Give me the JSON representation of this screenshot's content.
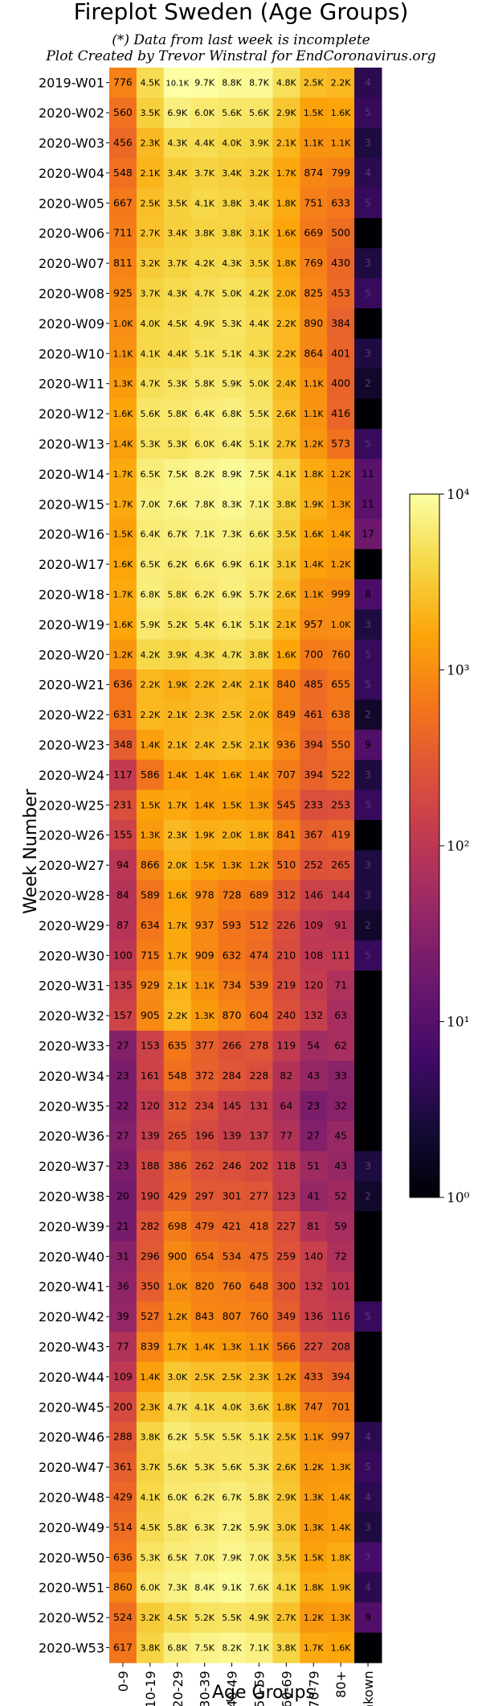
{
  "chart_data": {
    "type": "heatmap",
    "title": "Fireplot Sweden (Age Groups)",
    "subtitle_1": "(*) Data from last week is incomplete",
    "subtitle_2": "Plot Created by Trevor Winstral for EndCoronavirus.org",
    "xlabel": "Age Groups",
    "ylabel": "Week Number",
    "columns": [
      "0-9",
      "10-19",
      "20-29",
      "30-39",
      "40-49",
      "50-59",
      "60-69",
      "70-79",
      "80+",
      "Unkown"
    ],
    "rows": [
      "2019-W01",
      "2020-W02",
      "2020-W03",
      "2020-W04",
      "2020-W05",
      "2020-W06",
      "2020-W07",
      "2020-W08",
      "2020-W09",
      "2020-W10",
      "2020-W11",
      "2020-W12",
      "2020-W13",
      "2020-W14",
      "2020-W15",
      "2020-W16",
      "2020-W17",
      "2020-W18",
      "2020-W19",
      "2020-W20",
      "2020-W21",
      "2020-W22",
      "2020-W23",
      "2020-W24",
      "2020-W25",
      "2020-W26",
      "2020-W27",
      "2020-W28",
      "2020-W29",
      "2020-W30",
      "2020-W31",
      "2020-W32",
      "2020-W33",
      "2020-W34",
      "2020-W35",
      "2020-W36",
      "2020-W37",
      "2020-W38",
      "2020-W39",
      "2020-W40",
      "2020-W41",
      "2020-W42",
      "2020-W43",
      "2020-W44",
      "2020-W45",
      "2020-W46",
      "2020-W47",
      "2020-W48",
      "2020-W49",
      "2020-W50",
      "2020-W51",
      "2020-W52",
      "2020-W53"
    ],
    "labels": [
      [
        "776",
        "4.5K",
        "10.1K",
        "9.7K",
        "8.8K",
        "8.7K",
        "4.8K",
        "2.5K",
        "2.2K",
        "4"
      ],
      [
        "560",
        "3.5K",
        "6.9K",
        "6.0K",
        "5.6K",
        "5.6K",
        "2.9K",
        "1.5K",
        "1.6K",
        "5"
      ],
      [
        "456",
        "2.3K",
        "4.3K",
        "4.4K",
        "4.0K",
        "3.9K",
        "2.1K",
        "1.1K",
        "1.1K",
        "3"
      ],
      [
        "548",
        "2.1K",
        "3.4K",
        "3.7K",
        "3.4K",
        "3.2K",
        "1.7K",
        "874",
        "799",
        "4"
      ],
      [
        "667",
        "2.5K",
        "3.5K",
        "4.1K",
        "3.8K",
        "3.4K",
        "1.8K",
        "751",
        "633",
        "5"
      ],
      [
        "711",
        "2.7K",
        "3.4K",
        "3.8K",
        "3.8K",
        "3.1K",
        "1.6K",
        "669",
        "500",
        ""
      ],
      [
        "811",
        "3.2K",
        "3.7K",
        "4.2K",
        "4.3K",
        "3.5K",
        "1.8K",
        "769",
        "430",
        "3"
      ],
      [
        "925",
        "3.7K",
        "4.3K",
        "4.7K",
        "5.0K",
        "4.2K",
        "2.0K",
        "825",
        "453",
        "5"
      ],
      [
        "1.0K",
        "4.0K",
        "4.5K",
        "4.9K",
        "5.3K",
        "4.4K",
        "2.2K",
        "890",
        "384",
        ""
      ],
      [
        "1.1K",
        "4.1K",
        "4.4K",
        "5.1K",
        "5.1K",
        "4.3K",
        "2.2K",
        "864",
        "401",
        "3"
      ],
      [
        "1.3K",
        "4.7K",
        "5.3K",
        "5.8K",
        "5.9K",
        "5.0K",
        "2.4K",
        "1.1K",
        "400",
        "2"
      ],
      [
        "1.6K",
        "5.6K",
        "5.8K",
        "6.4K",
        "6.8K",
        "5.5K",
        "2.6K",
        "1.1K",
        "416",
        ""
      ],
      [
        "1.4K",
        "5.3K",
        "5.3K",
        "6.0K",
        "6.4K",
        "5.1K",
        "2.7K",
        "1.2K",
        "573",
        "5"
      ],
      [
        "1.7K",
        "6.5K",
        "7.5K",
        "8.2K",
        "8.9K",
        "7.5K",
        "4.1K",
        "1.8K",
        "1.2K",
        "11"
      ],
      [
        "1.7K",
        "7.0K",
        "7.6K",
        "7.8K",
        "8.3K",
        "7.1K",
        "3.8K",
        "1.9K",
        "1.3K",
        "11"
      ],
      [
        "1.5K",
        "6.4K",
        "6.7K",
        "7.1K",
        "7.3K",
        "6.6K",
        "3.5K",
        "1.6K",
        "1.4K",
        "17"
      ],
      [
        "1.6K",
        "6.5K",
        "6.2K",
        "6.6K",
        "6.9K",
        "6.1K",
        "3.1K",
        "1.4K",
        "1.2K",
        ""
      ],
      [
        "1.7K",
        "6.8K",
        "5.8K",
        "6.2K",
        "6.9K",
        "5.7K",
        "2.6K",
        "1.1K",
        "999",
        "8"
      ],
      [
        "1.6K",
        "5.9K",
        "5.2K",
        "5.4K",
        "6.1K",
        "5.1K",
        "2.1K",
        "957",
        "1.0K",
        "3"
      ],
      [
        "1.2K",
        "4.2K",
        "3.9K",
        "4.3K",
        "4.7K",
        "3.8K",
        "1.6K",
        "700",
        "760",
        "5"
      ],
      [
        "636",
        "2.2K",
        "1.9K",
        "2.2K",
        "2.4K",
        "2.1K",
        "840",
        "485",
        "655",
        "5"
      ],
      [
        "631",
        "2.2K",
        "2.1K",
        "2.3K",
        "2.5K",
        "2.0K",
        "849",
        "461",
        "638",
        "2"
      ],
      [
        "348",
        "1.4K",
        "2.1K",
        "2.4K",
        "2.5K",
        "2.1K",
        "936",
        "394",
        "550",
        "9"
      ],
      [
        "117",
        "586",
        "1.4K",
        "1.4K",
        "1.6K",
        "1.4K",
        "707",
        "394",
        "522",
        "3"
      ],
      [
        "231",
        "1.5K",
        "1.7K",
        "1.4K",
        "1.5K",
        "1.3K",
        "545",
        "233",
        "253",
        "5"
      ],
      [
        "155",
        "1.3K",
        "2.3K",
        "1.9K",
        "2.0K",
        "1.8K",
        "841",
        "367",
        "419",
        ""
      ],
      [
        "94",
        "866",
        "2.0K",
        "1.5K",
        "1.3K",
        "1.2K",
        "510",
        "252",
        "265",
        "3"
      ],
      [
        "84",
        "589",
        "1.6K",
        "978",
        "728",
        "689",
        "312",
        "146",
        "144",
        "3"
      ],
      [
        "87",
        "634",
        "1.7K",
        "937",
        "593",
        "512",
        "226",
        "109",
        "91",
        "2"
      ],
      [
        "100",
        "715",
        "1.7K",
        "909",
        "632",
        "474",
        "210",
        "108",
        "111",
        "5"
      ],
      [
        "135",
        "929",
        "2.1K",
        "1.1K",
        "734",
        "539",
        "219",
        "120",
        "71",
        ""
      ],
      [
        "157",
        "905",
        "2.2K",
        "1.3K",
        "870",
        "604",
        "240",
        "132",
        "63",
        ""
      ],
      [
        "27",
        "153",
        "635",
        "377",
        "266",
        "278",
        "119",
        "54",
        "62",
        ""
      ],
      [
        "23",
        "161",
        "548",
        "372",
        "284",
        "228",
        "82",
        "43",
        "33",
        ""
      ],
      [
        "22",
        "120",
        "312",
        "234",
        "145",
        "131",
        "64",
        "23",
        "32",
        ""
      ],
      [
        "27",
        "139",
        "265",
        "196",
        "139",
        "137",
        "77",
        "27",
        "45",
        ""
      ],
      [
        "23",
        "188",
        "386",
        "262",
        "246",
        "202",
        "118",
        "51",
        "43",
        "3"
      ],
      [
        "20",
        "190",
        "429",
        "297",
        "301",
        "277",
        "123",
        "41",
        "52",
        "2"
      ],
      [
        "21",
        "282",
        "698",
        "479",
        "421",
        "418",
        "227",
        "81",
        "59",
        ""
      ],
      [
        "31",
        "296",
        "900",
        "654",
        "534",
        "475",
        "259",
        "140",
        "72",
        ""
      ],
      [
        "36",
        "350",
        "1.0K",
        "820",
        "760",
        "648",
        "300",
        "132",
        "101",
        ""
      ],
      [
        "39",
        "527",
        "1.2K",
        "843",
        "807",
        "760",
        "349",
        "136",
        "116",
        "5"
      ],
      [
        "77",
        "839",
        "1.7K",
        "1.4K",
        "1.3K",
        "1.1K",
        "566",
        "227",
        "208",
        ""
      ],
      [
        "109",
        "1.4K",
        "3.0K",
        "2.5K",
        "2.5K",
        "2.3K",
        "1.2K",
        "433",
        "394",
        ""
      ],
      [
        "200",
        "2.3K",
        "4.7K",
        "4.1K",
        "4.0K",
        "3.6K",
        "1.8K",
        "747",
        "701",
        ""
      ],
      [
        "288",
        "3.8K",
        "6.2K",
        "5.5K",
        "5.5K",
        "5.1K",
        "2.5K",
        "1.1K",
        "997",
        "4"
      ],
      [
        "361",
        "3.7K",
        "5.6K",
        "5.3K",
        "5.6K",
        "5.3K",
        "2.6K",
        "1.2K",
        "1.3K",
        "5"
      ],
      [
        "429",
        "4.1K",
        "6.0K",
        "6.2K",
        "6.7K",
        "5.8K",
        "2.9K",
        "1.3K",
        "1.4K",
        "4"
      ],
      [
        "514",
        "4.5K",
        "5.8K",
        "6.3K",
        "7.2K",
        "5.9K",
        "3.0K",
        "1.3K",
        "1.4K",
        "3"
      ],
      [
        "636",
        "5.3K",
        "6.5K",
        "7.0K",
        "7.9K",
        "7.0K",
        "3.5K",
        "1.5K",
        "1.8K",
        "7"
      ],
      [
        "860",
        "6.0K",
        "7.3K",
        "8.4K",
        "9.1K",
        "7.6K",
        "4.1K",
        "1.8K",
        "1.9K",
        "4"
      ],
      [
        "524",
        "3.2K",
        "4.5K",
        "5.2K",
        "5.5K",
        "4.9K",
        "2.7K",
        "1.2K",
        "1.3K",
        "9"
      ],
      [
        "617",
        "3.8K",
        "6.8K",
        "7.5K",
        "8.2K",
        "7.1K",
        "3.8K",
        "1.7K",
        "1.6K",
        ""
      ]
    ],
    "color_scale": "log",
    "color_range": [
      1,
      10000
    ],
    "colormap": "inferno",
    "colorbar_ticks": [
      "10⁰",
      "10¹",
      "10²",
      "10³",
      "10⁴"
    ],
    "colorbar_tick_values": [
      1,
      10,
      100,
      1000,
      10000
    ],
    "empty_cell_color": "#000004"
  }
}
